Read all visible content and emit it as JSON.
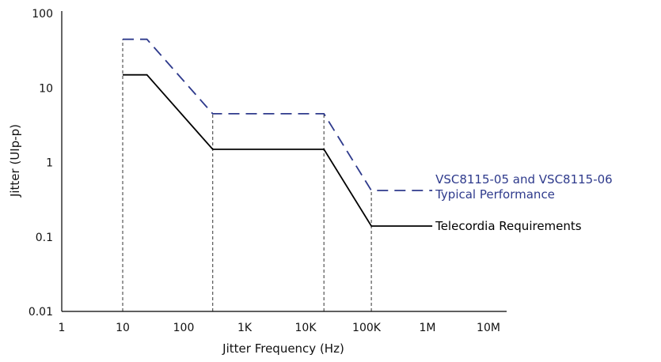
{
  "chart_data": {
    "type": "line",
    "title": "",
    "xlabel": "Jitter Frequency (Hz)",
    "ylabel": "Jitter (UIp-p)",
    "x_scale": "log",
    "y_scale": "log",
    "xlim": [
      1,
      10000000
    ],
    "ylim": [
      0.01,
      100
    ],
    "x_ticks": [
      1,
      10,
      100,
      1000,
      10000,
      100000,
      1000000,
      10000000
    ],
    "x_tick_labels": [
      "1",
      "10",
      "100",
      "1K",
      "10K",
      "100K",
      "1M",
      "10M"
    ],
    "y_ticks": [
      0.01,
      0.1,
      1,
      10,
      100
    ],
    "y_tick_labels": [
      "0.01",
      "0.1",
      "1",
      "10",
      "100"
    ],
    "grid": false,
    "vertical_guides_x": [
      10,
      300,
      20000,
      120000
    ],
    "series": [
      {
        "name": "VSC8115-05 and VSC8115-06 Typical Performance",
        "label_lines": [
          "VSC8115-05 and VSC8115-06",
          "Typical Performance"
        ],
        "color": "#2e3a8c",
        "style": "dashed",
        "x": [
          10,
          25,
          300,
          20000,
          120000,
          1200000
        ],
        "y": [
          45,
          45,
          4.5,
          4.5,
          0.42,
          0.42
        ]
      },
      {
        "name": "Telecordia Requirements",
        "label_lines": [
          "Telecordia Requirements"
        ],
        "color": "#000000",
        "style": "solid",
        "x": [
          10,
          25,
          300,
          20000,
          120000,
          1200000
        ],
        "y": [
          15,
          15,
          1.5,
          1.5,
          0.14,
          0.14
        ]
      }
    ]
  }
}
